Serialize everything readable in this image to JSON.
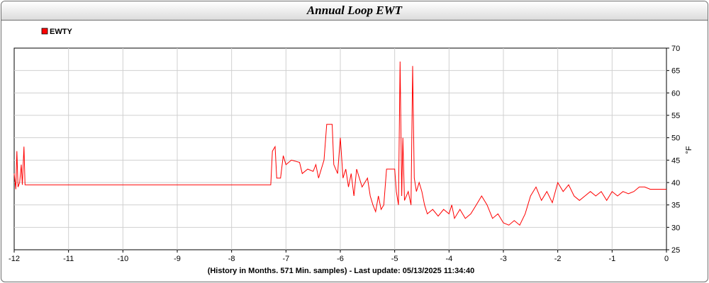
{
  "title": "Annual Loop EWT",
  "chart_data": {
    "type": "line",
    "title": "Annual Loop EWT",
    "xlabel": "(History in Months. 571 Min. samples) - Last update: 05/13/2025 11:34:40",
    "ylabel": "°F",
    "xlim": [
      -12,
      0
    ],
    "ylim": [
      25,
      70
    ],
    "x_ticks": [
      -12,
      -11,
      -10,
      -9,
      -8,
      -7,
      -6,
      -5,
      -4,
      -3,
      -2,
      -1,
      0
    ],
    "y_ticks": [
      25,
      30,
      35,
      40,
      45,
      50,
      55,
      60,
      65,
      70
    ],
    "grid": true,
    "legend_position": "top-left",
    "series": [
      {
        "name": "EWTY",
        "color": "#ff0000",
        "points": [
          [
            -12.0,
            42.0
          ],
          [
            -11.97,
            38.5
          ],
          [
            -11.95,
            47.0
          ],
          [
            -11.93,
            39.0
          ],
          [
            -11.9,
            40.0
          ],
          [
            -11.87,
            44.0
          ],
          [
            -11.85,
            39.5
          ],
          [
            -11.82,
            48.0
          ],
          [
            -11.8,
            39.5
          ],
          [
            -7.28,
            39.5
          ],
          [
            -7.25,
            47.0
          ],
          [
            -7.2,
            48.0
          ],
          [
            -7.17,
            41.0
          ],
          [
            -7.1,
            41.0
          ],
          [
            -7.05,
            46.0
          ],
          [
            -7.0,
            44.0
          ],
          [
            -6.9,
            45.0
          ],
          [
            -6.75,
            44.5
          ],
          [
            -6.7,
            42.0
          ],
          [
            -6.6,
            43.0
          ],
          [
            -6.5,
            42.5
          ],
          [
            -6.45,
            44.0
          ],
          [
            -6.4,
            41.0
          ],
          [
            -6.3,
            45.0
          ],
          [
            -6.25,
            53.0
          ],
          [
            -6.15,
            53.0
          ],
          [
            -6.12,
            44.0
          ],
          [
            -6.05,
            42.0
          ],
          [
            -6.0,
            50.0
          ],
          [
            -5.95,
            41.0
          ],
          [
            -5.9,
            43.0
          ],
          [
            -5.85,
            39.0
          ],
          [
            -5.8,
            42.0
          ],
          [
            -5.75,
            37.0
          ],
          [
            -5.7,
            43.0
          ],
          [
            -5.6,
            39.0
          ],
          [
            -5.5,
            41.0
          ],
          [
            -5.45,
            37.0
          ],
          [
            -5.4,
            35.0
          ],
          [
            -5.35,
            33.5
          ],
          [
            -5.3,
            37.0
          ],
          [
            -5.25,
            34.0
          ],
          [
            -5.2,
            35.0
          ],
          [
            -5.15,
            43.0
          ],
          [
            -5.0,
            43.0
          ],
          [
            -4.97,
            38.0
          ],
          [
            -4.93,
            35.0
          ],
          [
            -4.9,
            67.0
          ],
          [
            -4.87,
            37.0
          ],
          [
            -4.85,
            50.0
          ],
          [
            -4.82,
            36.0
          ],
          [
            -4.75,
            38.0
          ],
          [
            -4.7,
            35.0
          ],
          [
            -4.67,
            66.0
          ],
          [
            -4.64,
            41.0
          ],
          [
            -4.6,
            38.0
          ],
          [
            -4.55,
            40.0
          ],
          [
            -4.5,
            38.0
          ],
          [
            -4.45,
            35.0
          ],
          [
            -4.4,
            33.0
          ],
          [
            -4.3,
            34.0
          ],
          [
            -4.2,
            32.5
          ],
          [
            -4.1,
            34.0
          ],
          [
            -4.0,
            33.0
          ],
          [
            -3.95,
            35.0
          ],
          [
            -3.9,
            32.0
          ],
          [
            -3.8,
            34.0
          ],
          [
            -3.7,
            32.0
          ],
          [
            -3.6,
            33.0
          ],
          [
            -3.5,
            35.0
          ],
          [
            -3.4,
            37.0
          ],
          [
            -3.3,
            35.0
          ],
          [
            -3.2,
            32.0
          ],
          [
            -3.1,
            33.0
          ],
          [
            -3.0,
            31.0
          ],
          [
            -2.9,
            30.5
          ],
          [
            -2.8,
            31.5
          ],
          [
            -2.7,
            30.5
          ],
          [
            -2.6,
            33.0
          ],
          [
            -2.5,
            37.0
          ],
          [
            -2.4,
            39.0
          ],
          [
            -2.3,
            36.0
          ],
          [
            -2.2,
            38.0
          ],
          [
            -2.1,
            35.5
          ],
          [
            -2.0,
            40.0
          ],
          [
            -1.9,
            38.0
          ],
          [
            -1.8,
            39.5
          ],
          [
            -1.7,
            37.0
          ],
          [
            -1.6,
            36.0
          ],
          [
            -1.5,
            37.0
          ],
          [
            -1.4,
            38.0
          ],
          [
            -1.3,
            37.0
          ],
          [
            -1.2,
            38.0
          ],
          [
            -1.1,
            36.0
          ],
          [
            -1.0,
            38.0
          ],
          [
            -0.9,
            37.0
          ],
          [
            -0.8,
            38.0
          ],
          [
            -0.7,
            37.5
          ],
          [
            -0.6,
            38.0
          ],
          [
            -0.5,
            39.0
          ],
          [
            -0.4,
            39.0
          ],
          [
            -0.3,
            38.5
          ],
          [
            -0.2,
            38.5
          ],
          [
            0.0,
            38.5
          ]
        ]
      }
    ]
  }
}
